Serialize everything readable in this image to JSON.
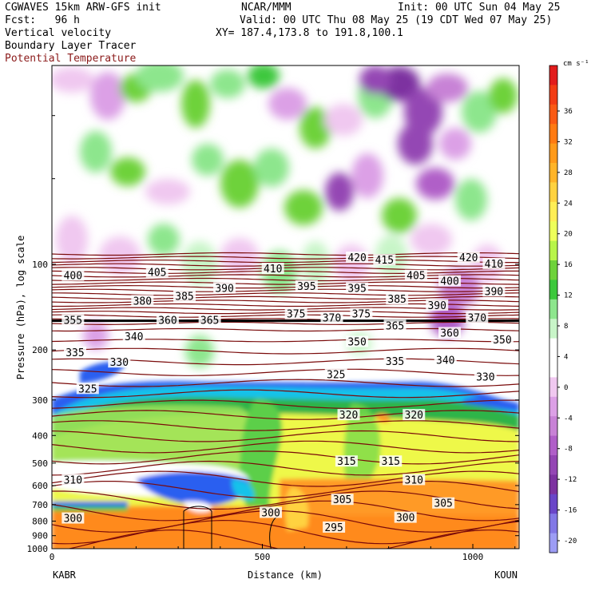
{
  "header": {
    "line1_left": "CGWAVES 15km ARW-GFS init",
    "line1_mid": "NCAR/MMM",
    "line1_right": "Init: 00 UTC Sun 04 May 25",
    "line2_left": "Fcst:   96 h",
    "line2_right": "Valid: 00 UTC Thu 08 May 25 (19 CDT Wed 07 May 25)",
    "line3_left": "Vertical velocity",
    "line3_right": "XY= 187.4,173.8 to 191.8,100.1",
    "line4_left": "Boundary Layer Tracer",
    "line5_left": "Potential Temperature"
  },
  "colors": {
    "potential_temperature": "#7a0a0a",
    "tracer": "#000000",
    "frame": "#000000"
  },
  "chart_data": {
    "type": "heatmap",
    "xlabel": "Distance (km)",
    "ylabel": "Pressure (hPa), log scale",
    "x_ticks": [
      0,
      500,
      1000
    ],
    "x_range": [
      0,
      1110
    ],
    "y_ticks": [
      100,
      200,
      300,
      400,
      500,
      600,
      700,
      800,
      900,
      1000
    ],
    "y_scale": "log",
    "y_range": [
      20,
      1000
    ],
    "endpoint_left": "KABR",
    "endpoint_right": "KOUN",
    "colorbar": {
      "unit": "cm s⁻¹",
      "ticks": [
        "36",
        "32",
        "28",
        "24",
        "20",
        "16",
        "12",
        "8",
        "4",
        "0",
        "-4",
        "-8",
        "-12",
        "-16",
        "-20"
      ],
      "colors": [
        "#e21c1c",
        "#f23c14",
        "#fa5a14",
        "#ff7a12",
        "#ff9a1a",
        "#ffb428",
        "#ffd240",
        "#ffee55",
        "#eeff5a",
        "#b8f54a",
        "#6ed23a",
        "#3cc83c",
        "#8de68d",
        "#c8f5c8",
        "#ffffff",
        "#ffffff",
        "#f0c8f0",
        "#dca0e6",
        "#c882d6",
        "#b05fc8",
        "#9446b4",
        "#7d32a0",
        "#6a46c8",
        "#8278e6",
        "#9d9df5"
      ]
    },
    "theta_labels": [
      {
        "text": "420",
        "x": 725,
        "p": 95
      },
      {
        "text": "415",
        "x": 790,
        "p": 97
      },
      {
        "text": "420",
        "x": 990,
        "p": 95
      },
      {
        "text": "410",
        "x": 1050,
        "p": 100
      },
      {
        "text": "400",
        "x": 50,
        "p": 110
      },
      {
        "text": "405",
        "x": 250,
        "p": 107
      },
      {
        "text": "410",
        "x": 525,
        "p": 104
      },
      {
        "text": "405",
        "x": 865,
        "p": 110
      },
      {
        "text": "400",
        "x": 945,
        "p": 115
      },
      {
        "text": "390",
        "x": 1050,
        "p": 125
      },
      {
        "text": "385",
        "x": 315,
        "p": 130
      },
      {
        "text": "390",
        "x": 410,
        "p": 122
      },
      {
        "text": "395",
        "x": 605,
        "p": 120
      },
      {
        "text": "395",
        "x": 725,
        "p": 122
      },
      {
        "text": "385",
        "x": 820,
        "p": 133
      },
      {
        "text": "390",
        "x": 915,
        "p": 140
      },
      {
        "text": "380",
        "x": 215,
        "p": 135
      },
      {
        "text": "375",
        "x": 580,
        "p": 150
      },
      {
        "text": "370",
        "x": 665,
        "p": 155
      },
      {
        "text": "375",
        "x": 735,
        "p": 150
      },
      {
        "text": "370",
        "x": 1010,
        "p": 155
      },
      {
        "text": "365",
        "x": 815,
        "p": 165
      },
      {
        "text": "360",
        "x": 275,
        "p": 158
      },
      {
        "text": "365",
        "x": 375,
        "p": 158
      },
      {
        "text": "355",
        "x": 50,
        "p": 158
      },
      {
        "text": "360",
        "x": 945,
        "p": 175
      },
      {
        "text": "350",
        "x": 725,
        "p": 188
      },
      {
        "text": "350",
        "x": 1070,
        "p": 185
      },
      {
        "text": "340",
        "x": 195,
        "p": 180
      },
      {
        "text": "335",
        "x": 55,
        "p": 205
      },
      {
        "text": "330",
        "x": 160,
        "p": 222
      },
      {
        "text": "335",
        "x": 815,
        "p": 220
      },
      {
        "text": "340",
        "x": 935,
        "p": 218
      },
      {
        "text": "330",
        "x": 1030,
        "p": 250
      },
      {
        "text": "325",
        "x": 675,
        "p": 245
      },
      {
        "text": "325",
        "x": 85,
        "p": 275
      },
      {
        "text": "320",
        "x": 705,
        "p": 340
      },
      {
        "text": "320",
        "x": 860,
        "p": 340
      },
      {
        "text": "315",
        "x": 700,
        "p": 495
      },
      {
        "text": "315",
        "x": 805,
        "p": 495
      },
      {
        "text": "310",
        "x": 50,
        "p": 575
      },
      {
        "text": "310",
        "x": 860,
        "p": 575
      },
      {
        "text": "305",
        "x": 690,
        "p": 675
      },
      {
        "text": "305",
        "x": 930,
        "p": 695
      },
      {
        "text": "300",
        "x": 50,
        "p": 785
      },
      {
        "text": "300",
        "x": 520,
        "p": 750
      },
      {
        "text": "300",
        "x": 840,
        "p": 780
      },
      {
        "text": "295",
        "x": 670,
        "p": 845
      }
    ]
  }
}
